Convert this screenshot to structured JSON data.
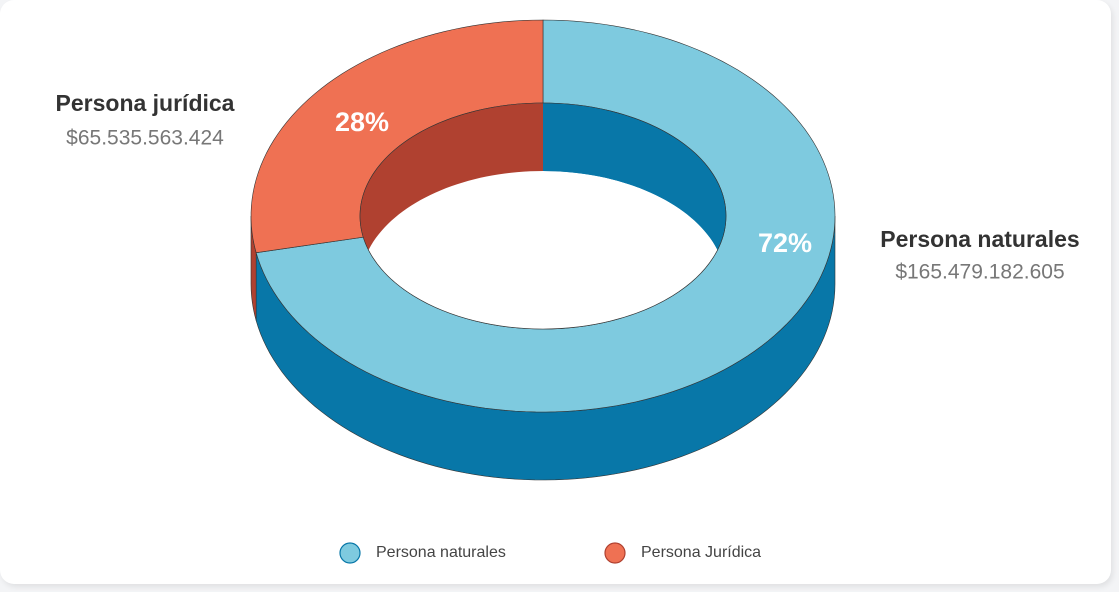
{
  "chart_data": {
    "type": "donut3d",
    "categories": [
      "Persona naturales",
      "Persona Jurídica"
    ],
    "values": [
      72,
      28
    ],
    "value_labels": [
      "72%",
      "28%"
    ],
    "colors": [
      "#7ecadf",
      "#ef7153"
    ],
    "side_colors": [
      "#0877a8",
      "#b04130"
    ],
    "callouts": [
      {
        "name": "Persona naturales",
        "amount": 165479182605,
        "amount_label": "$165.479.182.605"
      },
      {
        "name": "Persona jurídica",
        "amount": 65535563424,
        "amount_label": "$65.535.563.424"
      }
    ]
  }
}
